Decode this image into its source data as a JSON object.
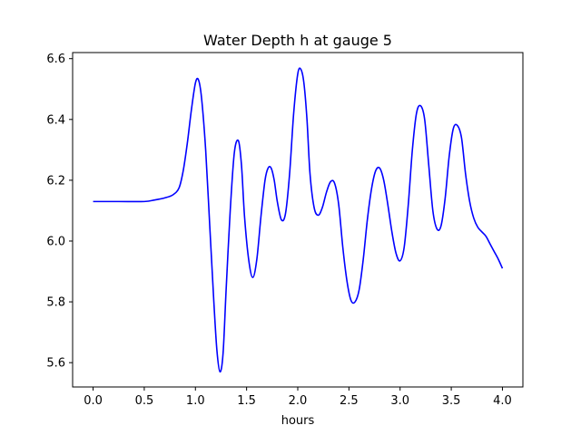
{
  "chart_data": {
    "type": "line",
    "title": "Water Depth h at gauge 5",
    "xlabel": "hours",
    "ylabel": "",
    "xlim": [
      -0.2,
      4.2
    ],
    "ylim": [
      5.52,
      6.62
    ],
    "grid": false,
    "legend": "none",
    "xticks": [
      0.0,
      0.5,
      1.0,
      1.5,
      2.0,
      2.5,
      3.0,
      3.5,
      4.0
    ],
    "xtick_labels": [
      "0.0",
      "0.5",
      "1.0",
      "1.5",
      "2.0",
      "2.5",
      "3.0",
      "3.5",
      "4.0"
    ],
    "yticks": [
      5.6,
      5.8,
      6.0,
      6.2,
      6.4,
      6.6
    ],
    "ytick_labels": [
      "5.6",
      "5.8",
      "6.0",
      "6.2",
      "6.4",
      "6.6"
    ],
    "series": [
      {
        "color": "#0000ff",
        "x": [
          0.0,
          0.25,
          0.5,
          0.6,
          0.7,
          0.78,
          0.84,
          0.88,
          0.92,
          0.96,
          1.0,
          1.03,
          1.06,
          1.1,
          1.14,
          1.18,
          1.21,
          1.24,
          1.27,
          1.3,
          1.34,
          1.38,
          1.42,
          1.45,
          1.48,
          1.52,
          1.56,
          1.6,
          1.64,
          1.68,
          1.71,
          1.74,
          1.77,
          1.8,
          1.84,
          1.88,
          1.92,
          1.96,
          2.0,
          2.03,
          2.06,
          2.09,
          2.12,
          2.16,
          2.2,
          2.24,
          2.28,
          2.32,
          2.36,
          2.4,
          2.44,
          2.48,
          2.52,
          2.56,
          2.6,
          2.64,
          2.68,
          2.72,
          2.76,
          2.8,
          2.84,
          2.88,
          2.92,
          2.96,
          3.0,
          3.04,
          3.08,
          3.12,
          3.16,
          3.2,
          3.24,
          3.28,
          3.32,
          3.36,
          3.4,
          3.44,
          3.48,
          3.52,
          3.56,
          3.6,
          3.64,
          3.68,
          3.72,
          3.76,
          3.8,
          3.84,
          3.88,
          3.92,
          3.96,
          4.0
        ],
        "y": [
          6.13,
          6.13,
          6.13,
          6.135,
          6.142,
          6.152,
          6.175,
          6.23,
          6.32,
          6.43,
          6.52,
          6.53,
          6.47,
          6.3,
          6.05,
          5.8,
          5.64,
          5.57,
          5.63,
          5.84,
          6.1,
          6.29,
          6.33,
          6.25,
          6.08,
          5.94,
          5.88,
          5.94,
          6.08,
          6.2,
          6.24,
          6.24,
          6.2,
          6.13,
          6.07,
          6.09,
          6.22,
          6.42,
          6.55,
          6.565,
          6.52,
          6.4,
          6.22,
          6.11,
          6.085,
          6.11,
          6.16,
          6.195,
          6.19,
          6.12,
          5.98,
          5.87,
          5.805,
          5.8,
          5.84,
          5.94,
          6.07,
          6.17,
          6.23,
          6.24,
          6.2,
          6.12,
          6.03,
          5.96,
          5.935,
          5.98,
          6.12,
          6.3,
          6.42,
          6.445,
          6.4,
          6.25,
          6.1,
          6.04,
          6.05,
          6.14,
          6.28,
          6.37,
          6.38,
          6.34,
          6.22,
          6.13,
          6.075,
          6.045,
          6.03,
          6.015,
          5.99,
          5.965,
          5.94,
          5.91
        ]
      }
    ]
  }
}
